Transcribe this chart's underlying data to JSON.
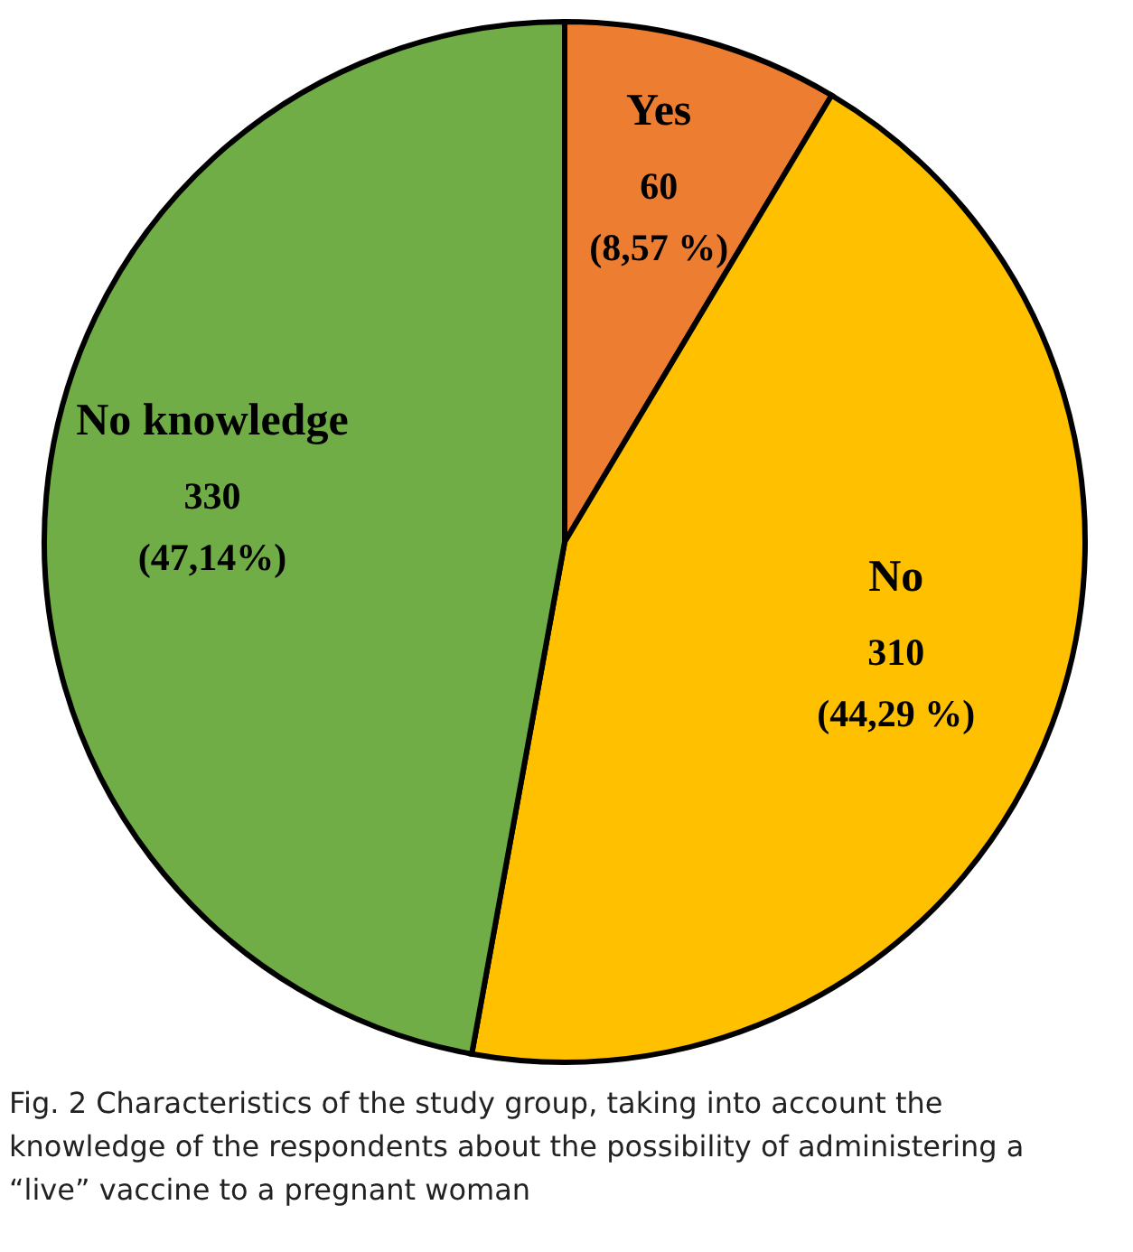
{
  "chart_data": {
    "type": "pie",
    "categories": [
      "Yes",
      "No",
      "No knowledge"
    ],
    "values": [
      60,
      310,
      330
    ],
    "colors": [
      "#ed7d31",
      "#ffc000",
      "#70ad47"
    ],
    "value_labels": [
      "60\n(8,57 %)",
      "310\n(44,29 %)",
      "330\n(47,14%)"
    ],
    "annotations": [
      "Fig. 2 Characteristics of the study group, taking into account the knowledge of the respondents about the possibility of administering a “live” vaccine to a pregnant woman"
    ]
  }
}
